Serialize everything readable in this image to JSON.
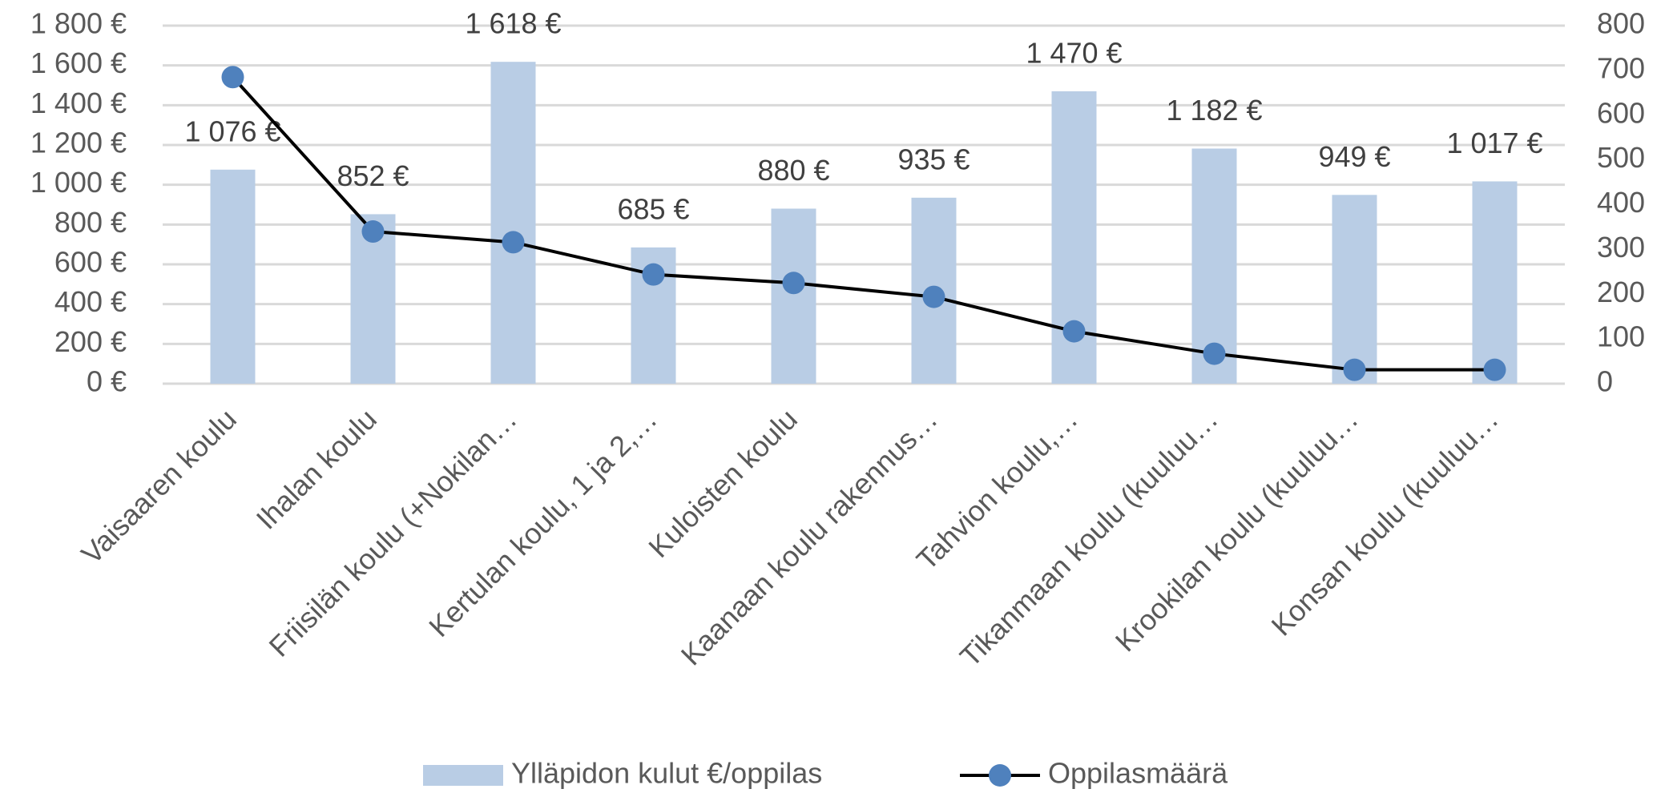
{
  "chart_data": {
    "type": "bar",
    "categories": [
      "Vaisaaren koulu",
      "Ihalan koulu",
      "Friisilän koulu (+Nokilan…",
      "Kertulan koulu, 1 ja 2,…",
      "Kuloisten koulu",
      "Kaanaan koulu rakennus…",
      "Tahvion koulu,…",
      "Tikanmaan koulu (kuuluu…",
      "Krookilan koulu (kuuluu…",
      "Konsan koulu (kuuluu…"
    ],
    "series": [
      {
        "name": "Ylläpidon kulut €/oppilas",
        "type": "bar",
        "color": "#b9cde5",
        "values": [
          1076,
          852,
          1618,
          685,
          880,
          935,
          1470,
          1182,
          949,
          1017
        ],
        "value_labels": [
          "1 076 €",
          "852 €",
          "1 618 €",
          "685 €",
          "880 €",
          "935 €",
          "1 470 €",
          "1 182 €",
          "949 €",
          "1 017 €"
        ]
      },
      {
        "name": "Oppilasmäärä",
        "type": "line",
        "axis": "y2",
        "color": "#4f81bd",
        "line_color": "#000000",
        "values": [
          685,
          340,
          316,
          244,
          225,
          194,
          117,
          67,
          31,
          31
        ]
      }
    ],
    "ylim": [
      0,
      1800
    ],
    "yticks": [
      {
        "value": 0,
        "label": "0 €"
      },
      {
        "value": 200,
        "label": "200 €"
      },
      {
        "value": 400,
        "label": "400 €"
      },
      {
        "value": 600,
        "label": "600 €"
      },
      {
        "value": 800,
        "label": "800 €"
      },
      {
        "value": 1000,
        "label": "1 000 €"
      },
      {
        "value": 1200,
        "label": "1 200 €"
      },
      {
        "value": 1400,
        "label": "1 400 €"
      },
      {
        "value": 1600,
        "label": "1 600 €"
      },
      {
        "value": 1800,
        "label": "1 800 €"
      }
    ],
    "y2lim": [
      0,
      800
    ],
    "y2ticks": [
      0,
      100,
      200,
      300,
      400,
      500,
      600,
      700,
      800
    ],
    "grid": true,
    "legend": "bottom"
  }
}
